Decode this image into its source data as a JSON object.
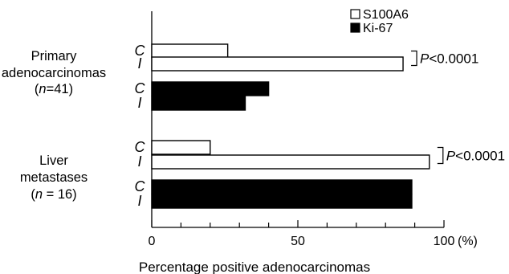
{
  "chart_data": {
    "type": "bar",
    "orientation": "horizontal",
    "xlabel": "Percentage positive adenocarcinomas",
    "x_unit": "(%)",
    "xlim": [
      0,
      100
    ],
    "x_ticks": [
      "0",
      "50",
      "100"
    ],
    "series": [
      {
        "name": "S100A6",
        "color": "#ffffff"
      },
      {
        "name": "Ki-67",
        "color": "#000000"
      }
    ],
    "legend_position": "top-right",
    "groups": [
      {
        "label_lines": [
          "Primary",
          "adenocarcinomas"
        ],
        "n_label": {
          "open": "(",
          "var": "n",
          "rest": "=41)"
        },
        "bars": [
          {
            "series": "S100A6",
            "region": "C",
            "value": 26
          },
          {
            "series": "S100A6",
            "region": "I",
            "value": 86
          },
          {
            "series": "Ki-67",
            "region": "C",
            "value": 40
          },
          {
            "series": "Ki-67",
            "region": "I",
            "value": 32
          }
        ],
        "significance": {
          "prefix": "P",
          "text": "<0.0001"
        }
      },
      {
        "label_lines": [
          "Liver",
          "metastases"
        ],
        "n_label": {
          "open": "(",
          "var": "n",
          "rest": " = 16)"
        },
        "bars": [
          {
            "series": "S100A6",
            "region": "C",
            "value": 20
          },
          {
            "series": "S100A6",
            "region": "I",
            "value": 95
          },
          {
            "series": "Ki-67",
            "region": "C",
            "value": 89
          },
          {
            "series": "Ki-67",
            "region": "I",
            "value": 89
          }
        ],
        "significance": {
          "prefix": "P",
          "text": "<0.0001"
        }
      }
    ]
  }
}
